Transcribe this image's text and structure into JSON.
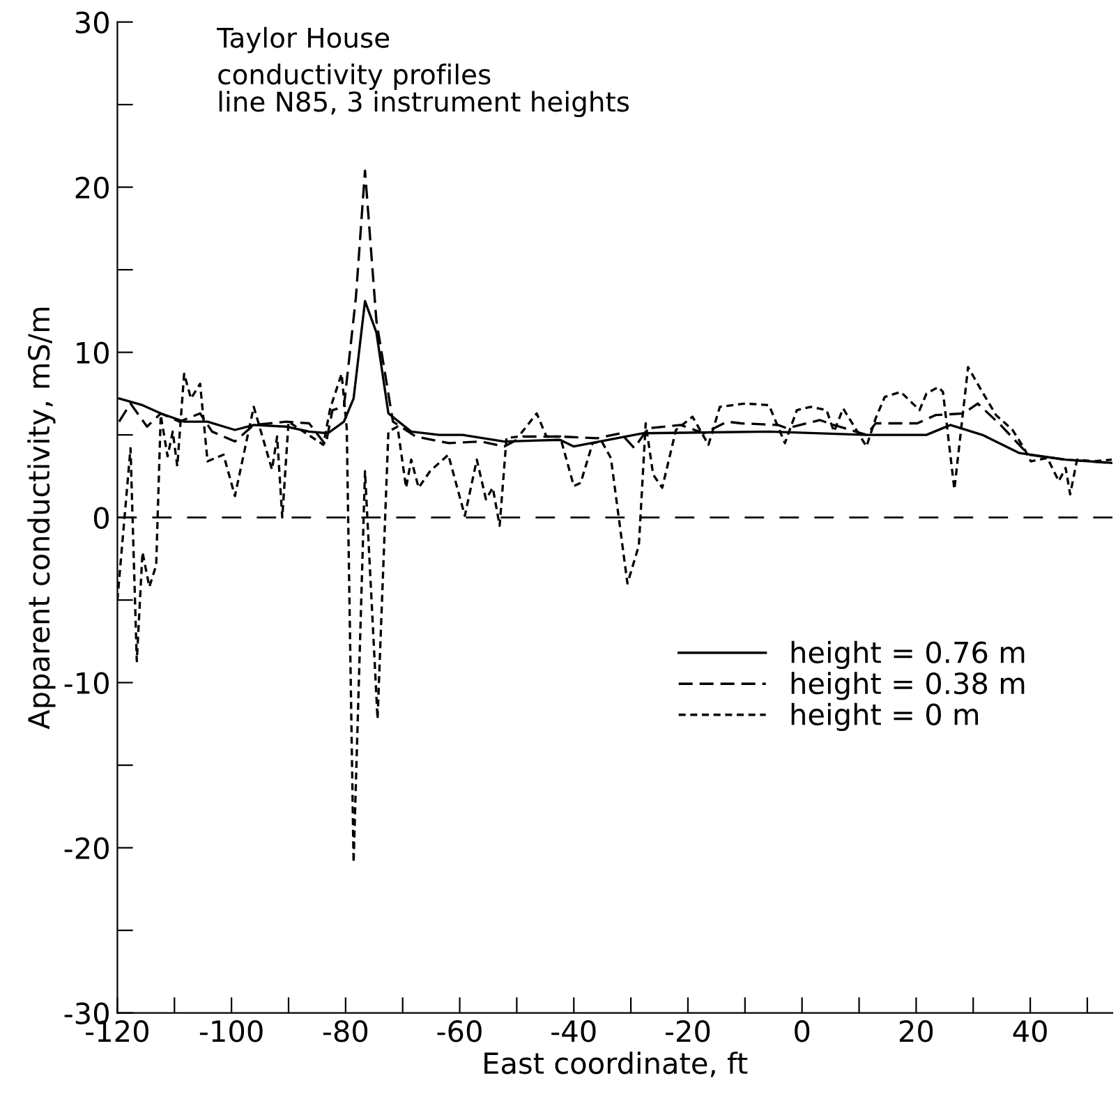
{
  "chart_data": {
    "type": "line",
    "title": "Taylor House",
    "subtitle": "conductivity profiles\nline N85, 3 instrument heights",
    "xlabel": "East coordinate, ft",
    "ylabel": "Apparent conductivity, mS/m",
    "xlim": [
      -120,
      54.4
    ],
    "ylim": [
      -30,
      30
    ],
    "xticks": [
      -120,
      {
        "value": -110,
        "label": null
      },
      -100,
      {
        "value": -90,
        "label": null
      },
      -80,
      {
        "value": -70,
        "label": null
      },
      -60,
      {
        "value": -50,
        "label": null
      },
      -40,
      {
        "value": -30,
        "label": null
      },
      -20,
      {
        "value": -10,
        "label": null
      },
      0,
      {
        "value": 10,
        "label": null
      },
      20,
      {
        "value": 30,
        "label": null
      },
      40,
      {
        "value": 50,
        "label": null
      }
    ],
    "yticks": [
      -30,
      {
        "value": -25,
        "label": null
      },
      -20,
      {
        "value": -15,
        "label": null
      },
      -10,
      {
        "value": -5,
        "label": null
      },
      0,
      {
        "value": 5,
        "label": null
      },
      10,
      {
        "value": 15,
        "label": null
      },
      20,
      {
        "value": 25,
        "label": null
      },
      30
    ],
    "grid": false,
    "legend": "right",
    "marker": "none",
    "ref_lines": [
      {
        "axis": "y",
        "value": 0,
        "color": "#000000",
        "line_style": "dashed"
      }
    ],
    "series": [
      {
        "name": "height = 0.76 m",
        "color": "#000000",
        "line_style": "solid",
        "x": [
          -119.7,
          -115.6,
          -112.4,
          -108.3,
          -104.2,
          -99.4,
          -96.1,
          -90.4,
          -86.4,
          -83.1,
          -80.3,
          -78.6,
          -76.6,
          -74.6,
          -72.5,
          -68.5,
          -63.6,
          -59.5,
          -52.2,
          -42.4,
          -40.0,
          -27.8,
          -5.8,
          11.3,
          21.8,
          26.0,
          31.6,
          38.1,
          46.2,
          54.3
        ],
        "values": [
          7.2,
          6.8,
          6.3,
          5.8,
          5.8,
          5.3,
          5.6,
          5.5,
          5.2,
          5.1,
          5.8,
          7.2,
          13.1,
          11.2,
          6.3,
          5.2,
          5.0,
          5.0,
          4.6,
          4.7,
          4.3,
          5.1,
          5.2,
          5.0,
          5.0,
          5.6,
          5.0,
          3.9,
          3.5,
          3.3
        ]
      },
      {
        "name": "height = 0.38 m",
        "color": "#000000",
        "line_style": "dashed",
        "x": [
          -119.7,
          -117.7,
          -114.8,
          -112.4,
          -109.1,
          -105.5,
          -103.4,
          -99.4,
          -96.1,
          -90.4,
          -86.4,
          -83.5,
          -82.3,
          -80.3,
          -78.2,
          -76.6,
          -74.6,
          -71.7,
          -67.7,
          -61.9,
          -56.2,
          -52.2,
          -48.9,
          -42.4,
          -35.9,
          -31.8,
          -29.4,
          -27.0,
          -21.3,
          -17.2,
          -13.1,
          -10.7,
          -4.2,
          -2.6,
          3.1,
          5.6,
          11.3,
          12.9,
          20.2,
          23.4,
          28.3,
          30.8,
          34.8,
          39.7,
          46.2,
          54.3
        ],
        "values": [
          5.8,
          6.9,
          5.5,
          6.3,
          5.8,
          6.3,
          5.2,
          4.6,
          5.6,
          5.8,
          5.7,
          4.4,
          6.5,
          6.7,
          13.3,
          21.0,
          11.9,
          5.8,
          4.9,
          4.5,
          4.6,
          4.3,
          4.9,
          4.9,
          4.8,
          5.1,
          4.2,
          5.4,
          5.6,
          5.1,
          5.8,
          5.7,
          5.6,
          5.4,
          5.9,
          5.6,
          5.0,
          5.7,
          5.7,
          6.2,
          6.3,
          6.9,
          5.6,
          3.8,
          3.5,
          3.3
        ]
      },
      {
        "name": "height = 0 m",
        "color": "#000000",
        "line_style": "dotted",
        "x": [
          -120.0,
          -117.7,
          -116.6,
          -115.6,
          -114.4,
          -113.2,
          -112.4,
          -111.2,
          -110.3,
          -109.5,
          -108.3,
          -107.1,
          -105.5,
          -104.2,
          -101.4,
          -99.4,
          -96.1,
          -92.9,
          -92.0,
          -91.1,
          -90.0,
          -83.9,
          -82.7,
          -80.7,
          -79.8,
          -78.6,
          -76.6,
          -74.4,
          -72.5,
          -70.9,
          -69.4,
          -68.5,
          -67.2,
          -65.2,
          -62.0,
          -59.1,
          -57.0,
          -55.4,
          -54.2,
          -53.0,
          -51.8,
          -49.7,
          -46.5,
          -44.8,
          -42.4,
          -40.0,
          -38.8,
          -36.7,
          -35.1,
          -33.5,
          -30.6,
          -28.6,
          -27.4,
          -26.1,
          -24.5,
          -22.1,
          -19.2,
          -16.4,
          -14.4,
          -9.9,
          -5.8,
          -3.0,
          -0.9,
          1.5,
          4.3,
          5.6,
          7.2,
          11.3,
          12.9,
          14.5,
          17.3,
          20.6,
          21.8,
          23.9,
          24.7,
          26.7,
          29.1,
          31.6,
          34.0,
          36.9,
          38.9,
          40.1,
          43.0,
          45.0,
          46.2,
          47.0,
          48.2,
          51.1,
          54.3
        ],
        "values": [
          -5.0,
          4.2,
          -8.7,
          -2.1,
          -4.2,
          -2.9,
          6.2,
          3.7,
          5.2,
          3.1,
          8.7,
          7.2,
          8.1,
          3.4,
          3.8,
          1.3,
          6.7,
          2.9,
          4.9,
          0.0,
          5.8,
          4.4,
          6.6,
          8.7,
          5.4,
          -20.9,
          2.8,
          -12.2,
          5.2,
          5.5,
          1.8,
          3.5,
          1.8,
          2.8,
          3.8,
          0.1,
          3.5,
          1.1,
          1.8,
          -0.5,
          4.8,
          4.9,
          6.3,
          4.9,
          4.9,
          1.9,
          2.1,
          4.5,
          4.6,
          3.6,
          -4.0,
          -1.7,
          5.7,
          2.6,
          1.8,
          5.3,
          6.1,
          4.4,
          6.7,
          6.9,
          6.8,
          4.5,
          6.5,
          6.7,
          6.5,
          5.2,
          6.6,
          4.3,
          6.0,
          7.3,
          7.6,
          6.5,
          7.5,
          7.9,
          7.6,
          1.7,
          9.1,
          7.6,
          6.2,
          5.3,
          4.2,
          3.4,
          3.6,
          2.2,
          3.0,
          1.4,
          3.5,
          3.4,
          3.5
        ]
      }
    ]
  }
}
